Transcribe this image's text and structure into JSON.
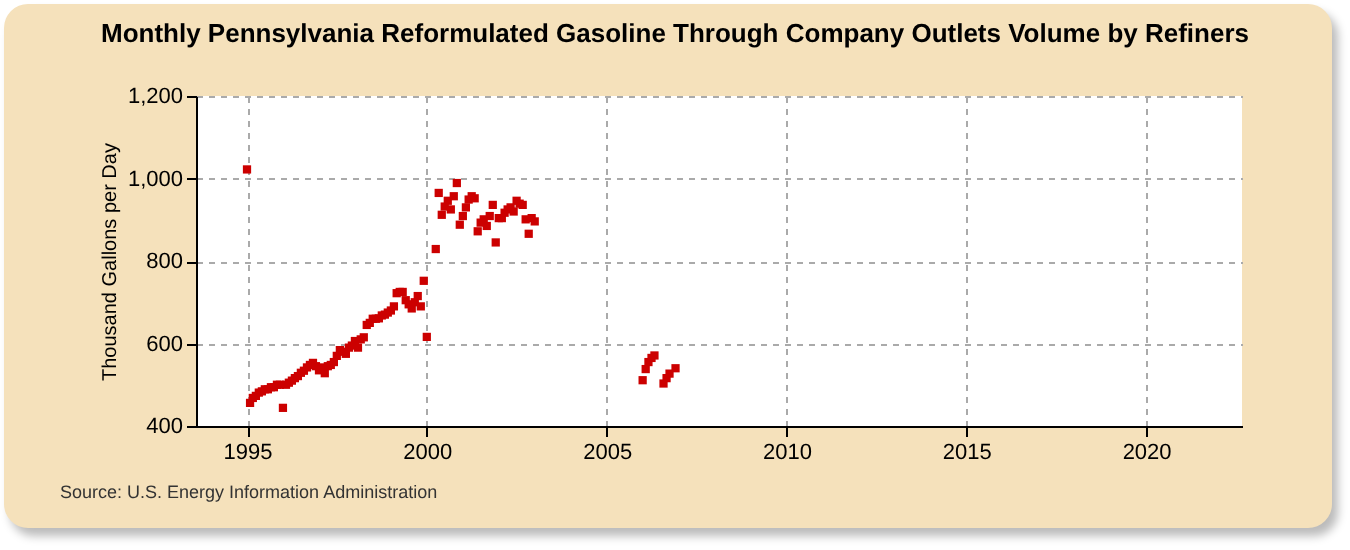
{
  "chart_data": {
    "type": "scatter",
    "title": "Monthly Pennsylvania Reformulated Gasoline Through Company Outlets Volume by Refiners",
    "ylabel": "Thousand Gallons per Day",
    "annotations": [
      "Source: U.S. Energy Information Administration"
    ],
    "x": [
      "1995-01",
      "1995-02",
      "1995-03",
      "1995-04",
      "1995-05",
      "1995-06",
      "1995-07",
      "1995-08",
      "1995-09",
      "1995-10",
      "1995-11",
      "1995-12",
      "1996-01",
      "1996-02",
      "1996-03",
      "1996-04",
      "1996-05",
      "1996-06",
      "1996-07",
      "1996-08",
      "1996-09",
      "1996-10",
      "1996-11",
      "1996-12",
      "1997-01",
      "1997-02",
      "1997-03",
      "1997-04",
      "1997-05",
      "1997-06",
      "1997-07",
      "1997-08",
      "1997-09",
      "1997-10",
      "1997-11",
      "1997-12",
      "1998-01",
      "1998-02",
      "1998-03",
      "1998-04",
      "1998-05",
      "1998-06",
      "1998-07",
      "1998-08",
      "1998-09",
      "1998-10",
      "1998-11",
      "1998-12",
      "1999-01",
      "1999-02",
      "1999-03",
      "1999-04",
      "1999-05",
      "1999-06",
      "1999-07",
      "1999-08",
      "1999-09",
      "1999-10",
      "1999-11",
      "1999-12",
      "2000-01",
      "2000-04",
      "2000-05",
      "2000-06",
      "2000-07",
      "2000-08",
      "2000-09",
      "2000-10",
      "2000-11",
      "2000-12",
      "2001-01",
      "2001-02",
      "2001-03",
      "2001-04",
      "2001-05",
      "2001-06",
      "2001-07",
      "2001-08",
      "2001-09",
      "2001-10",
      "2001-11",
      "2001-12",
      "2002-01",
      "2002-02",
      "2002-03",
      "2002-04",
      "2002-05",
      "2002-06",
      "2002-07",
      "2002-08",
      "2002-09",
      "2002-10",
      "2002-11",
      "2002-12",
      "2003-01",
      "2006-01",
      "2006-02",
      "2006-03",
      "2006-04",
      "2006-05",
      "2006-08",
      "2006-09",
      "2006-10",
      "2006-12"
    ],
    "series": [
      {
        "color": "#cc0000",
        "values": [
          1022,
          456,
          468,
          473,
          481,
          484,
          489,
          489,
          494,
          494,
          500,
          500,
          444,
          500,
          505,
          510,
          516,
          521,
          529,
          534,
          542,
          548,
          553,
          545,
          535,
          542,
          528,
          545,
          548,
          555,
          570,
          584,
          580,
          575,
          590,
          595,
          606,
          590,
          610,
          615,
          645,
          650,
          660,
          660,
          661,
          668,
          670,
          675,
          680,
          690,
          722,
          725,
          725,
          705,
          695,
          685,
          700,
          715,
          690,
          752,
          616,
          829,
          965,
          912,
          932,
          946,
          925,
          957,
          989,
          888,
          909,
          930,
          949,
          957,
          952,
          872,
          893,
          901,
          885,
          909,
          936,
          845,
          904,
          904,
          917,
          925,
          930,
          920,
          946,
          939,
          936,
          901,
          866,
          904,
          896,
          511,
          538,
          555,
          565,
          571,
          503,
          516,
          527,
          540
        ]
      }
    ],
    "xlim": [
      "1993-08",
      "2022-09"
    ],
    "xticks": [
      {
        "value": "1995",
        "label": "1995"
      },
      {
        "value": "2000",
        "label": "2000"
      },
      {
        "value": "2005",
        "label": "2005"
      },
      {
        "value": "2010",
        "label": "2010"
      },
      {
        "value": "2015",
        "label": "2015"
      },
      {
        "value": "2020",
        "label": "2020"
      }
    ],
    "ylim": [
      400,
      1200
    ],
    "yticks": [
      400,
      600,
      800,
      {
        "value": 1000,
        "label": "1,000"
      },
      {
        "value": 1200,
        "label": "1,200"
      }
    ],
    "grid": true,
    "marker": "square",
    "legend": false
  }
}
